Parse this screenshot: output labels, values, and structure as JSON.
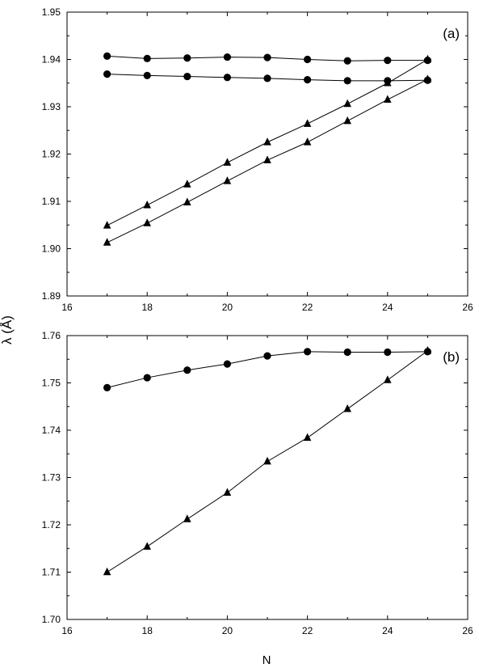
{
  "y_axis_label": "λ (Å)",
  "x_axis_label": "N",
  "chart_data": [
    {
      "type": "line",
      "panel_label": "(a)",
      "xlabel": "N",
      "ylabel": "λ (Å)",
      "xlim": [
        16,
        26
      ],
      "ylim": [
        1.89,
        1.95
      ],
      "x_ticks": [
        "16",
        "18",
        "20",
        "22",
        "24",
        "26"
      ],
      "y_ticks": [
        "1.89",
        "1.90",
        "1.91",
        "1.92",
        "1.93",
        "1.94",
        "1.95"
      ],
      "grid": false,
      "series": [
        {
          "marker": "circle",
          "x": [
            17,
            18,
            19,
            20,
            21,
            22,
            23,
            24,
            25
          ],
          "values": [
            1.9407,
            1.9402,
            1.9403,
            1.9405,
            1.9404,
            1.94,
            1.9397,
            1.9398,
            1.9398
          ]
        },
        {
          "marker": "circle",
          "x": [
            17,
            18,
            19,
            20,
            21,
            22,
            23,
            24,
            25
          ],
          "values": [
            1.9369,
            1.9366,
            1.9364,
            1.9362,
            1.936,
            1.9357,
            1.9355,
            1.9355,
            1.9356
          ]
        },
        {
          "marker": "triangle",
          "x": [
            17,
            18,
            19,
            20,
            21,
            22,
            23,
            24,
            25
          ],
          "values": [
            1.9049,
            1.9092,
            1.9136,
            1.9182,
            1.9225,
            1.9264,
            1.9306,
            1.935,
            1.94
          ]
        },
        {
          "marker": "triangle",
          "x": [
            17,
            18,
            19,
            20,
            21,
            22,
            23,
            24,
            25
          ],
          "values": [
            1.9013,
            1.9054,
            1.9098,
            1.9143,
            1.9187,
            1.9225,
            1.927,
            1.9315,
            1.9358
          ]
        }
      ]
    },
    {
      "type": "line",
      "panel_label": "(b)",
      "xlabel": "N",
      "ylabel": "λ (Å)",
      "xlim": [
        16,
        26
      ],
      "ylim": [
        1.7,
        1.76
      ],
      "x_ticks": [
        "16",
        "18",
        "20",
        "22",
        "24",
        "26"
      ],
      "y_ticks": [
        "1.70",
        "1.71",
        "1.72",
        "1.73",
        "1.74",
        "1.75",
        "1.76"
      ],
      "grid": false,
      "series": [
        {
          "marker": "circle",
          "x": [
            17,
            18,
            19,
            20,
            21,
            22,
            23,
            24,
            25
          ],
          "values": [
            1.749,
            1.7511,
            1.7527,
            1.754,
            1.7557,
            1.7566,
            1.7565,
            1.7565,
            1.7566
          ]
        },
        {
          "marker": "triangle",
          "x": [
            17,
            18,
            19,
            20,
            21,
            22,
            23,
            24,
            25
          ],
          "values": [
            1.71,
            1.7154,
            1.7212,
            1.7268,
            1.7334,
            1.7384,
            1.7445,
            1.7506,
            1.7568
          ]
        }
      ]
    }
  ]
}
